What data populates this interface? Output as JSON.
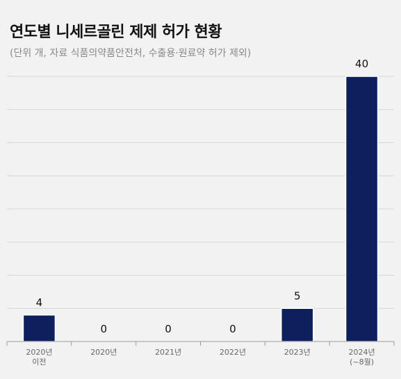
{
  "header": {
    "title": "연도별 니세르골린 제제 허가 현황",
    "subtitle": "(단위 개, 자료 식품의약품안전처, 수출용·원료약 허가 제외)"
  },
  "chart_data": {
    "type": "bar",
    "title": "연도별 니세르골린 제제 허가 현황",
    "subtitle": "(단위 개, 자료 식품의약품안전처, 수출용·원료약 허가 제외)",
    "categories": [
      [
        "2020년",
        "이전"
      ],
      [
        "2020년"
      ],
      [
        "2021년"
      ],
      [
        "2022년"
      ],
      [
        "2023년"
      ],
      [
        "2024년",
        "(~8월)"
      ]
    ],
    "values": [
      4,
      0,
      0,
      0,
      5,
      40
    ],
    "ylim": [
      0,
      40
    ],
    "grid": true,
    "bar_color": "#0d1f5c",
    "grid_color": "#d6d6d6",
    "background": "#f2f2f2"
  }
}
